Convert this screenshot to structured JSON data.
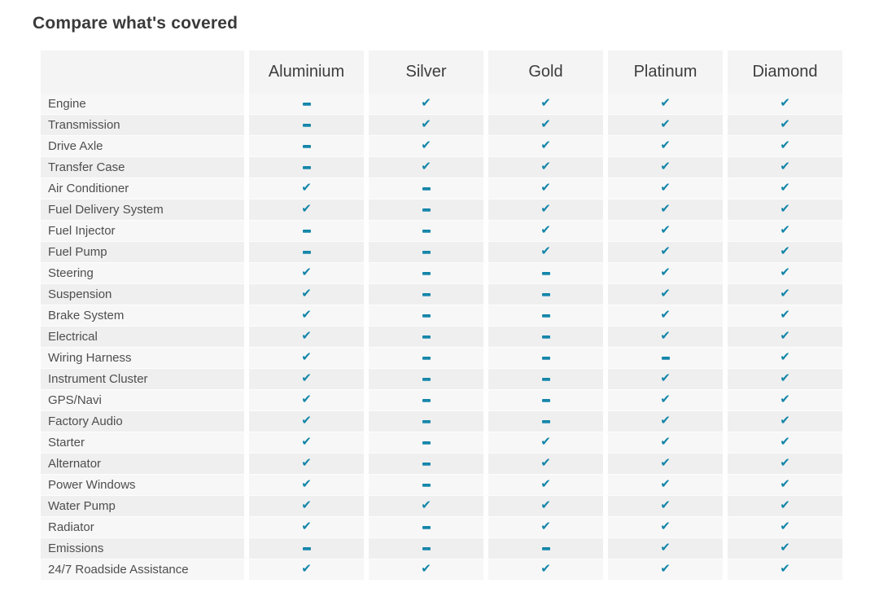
{
  "title": "Compare what's covered",
  "accent_color": "#1285a8",
  "icons": {
    "check": {
      "name": "check-icon",
      "glyph": "✔"
    },
    "dash": {
      "name": "dash-icon",
      "shape": "css-bar"
    }
  },
  "table": {
    "plan_columns": [
      "Aluminium",
      "Silver",
      "Gold",
      "Platinum",
      "Diamond"
    ],
    "rows": [
      {
        "label": "Engine",
        "coverage": [
          "dash",
          "check",
          "check",
          "check",
          "check"
        ]
      },
      {
        "label": "Transmission",
        "coverage": [
          "dash",
          "check",
          "check",
          "check",
          "check"
        ]
      },
      {
        "label": "Drive Axle",
        "coverage": [
          "dash",
          "check",
          "check",
          "check",
          "check"
        ]
      },
      {
        "label": "Transfer Case",
        "coverage": [
          "dash",
          "check",
          "check",
          "check",
          "check"
        ]
      },
      {
        "label": "Air Conditioner",
        "coverage": [
          "check",
          "dash",
          "check",
          "check",
          "check"
        ]
      },
      {
        "label": "Fuel Delivery System",
        "coverage": [
          "check",
          "dash",
          "check",
          "check",
          "check"
        ]
      },
      {
        "label": "Fuel Injector",
        "coverage": [
          "dash",
          "dash",
          "check",
          "check",
          "check"
        ]
      },
      {
        "label": "Fuel Pump",
        "coverage": [
          "dash",
          "dash",
          "check",
          "check",
          "check"
        ]
      },
      {
        "label": "Steering",
        "coverage": [
          "check",
          "dash",
          "dash",
          "check",
          "check"
        ]
      },
      {
        "label": "Suspension",
        "coverage": [
          "check",
          "dash",
          "dash",
          "check",
          "check"
        ]
      },
      {
        "label": "Brake System",
        "coverage": [
          "check",
          "dash",
          "dash",
          "check",
          "check"
        ]
      },
      {
        "label": "Electrical",
        "coverage": [
          "check",
          "dash",
          "dash",
          "check",
          "check"
        ]
      },
      {
        "label": "Wiring Harness",
        "coverage": [
          "check",
          "dash",
          "dash",
          "dash",
          "check"
        ]
      },
      {
        "label": "Instrument Cluster",
        "coverage": [
          "check",
          "dash",
          "dash",
          "check",
          "check"
        ]
      },
      {
        "label": "GPS/Navi",
        "coverage": [
          "check",
          "dash",
          "dash",
          "check",
          "check"
        ]
      },
      {
        "label": "Factory Audio",
        "coverage": [
          "check",
          "dash",
          "dash",
          "check",
          "check"
        ]
      },
      {
        "label": "Starter",
        "coverage": [
          "check",
          "dash",
          "check",
          "check",
          "check"
        ]
      },
      {
        "label": "Alternator",
        "coverage": [
          "check",
          "dash",
          "check",
          "check",
          "check"
        ]
      },
      {
        "label": "Power Windows",
        "coverage": [
          "check",
          "dash",
          "check",
          "check",
          "check"
        ]
      },
      {
        "label": "Water Pump",
        "coverage": [
          "check",
          "check",
          "check",
          "check",
          "check"
        ]
      },
      {
        "label": "Radiator",
        "coverage": [
          "check",
          "dash",
          "check",
          "check",
          "check"
        ]
      },
      {
        "label": "Emissions",
        "coverage": [
          "dash",
          "dash",
          "dash",
          "check",
          "check"
        ]
      },
      {
        "label": "24/7 Roadside Assistance",
        "coverage": [
          "check",
          "check",
          "check",
          "check",
          "check"
        ]
      }
    ]
  }
}
